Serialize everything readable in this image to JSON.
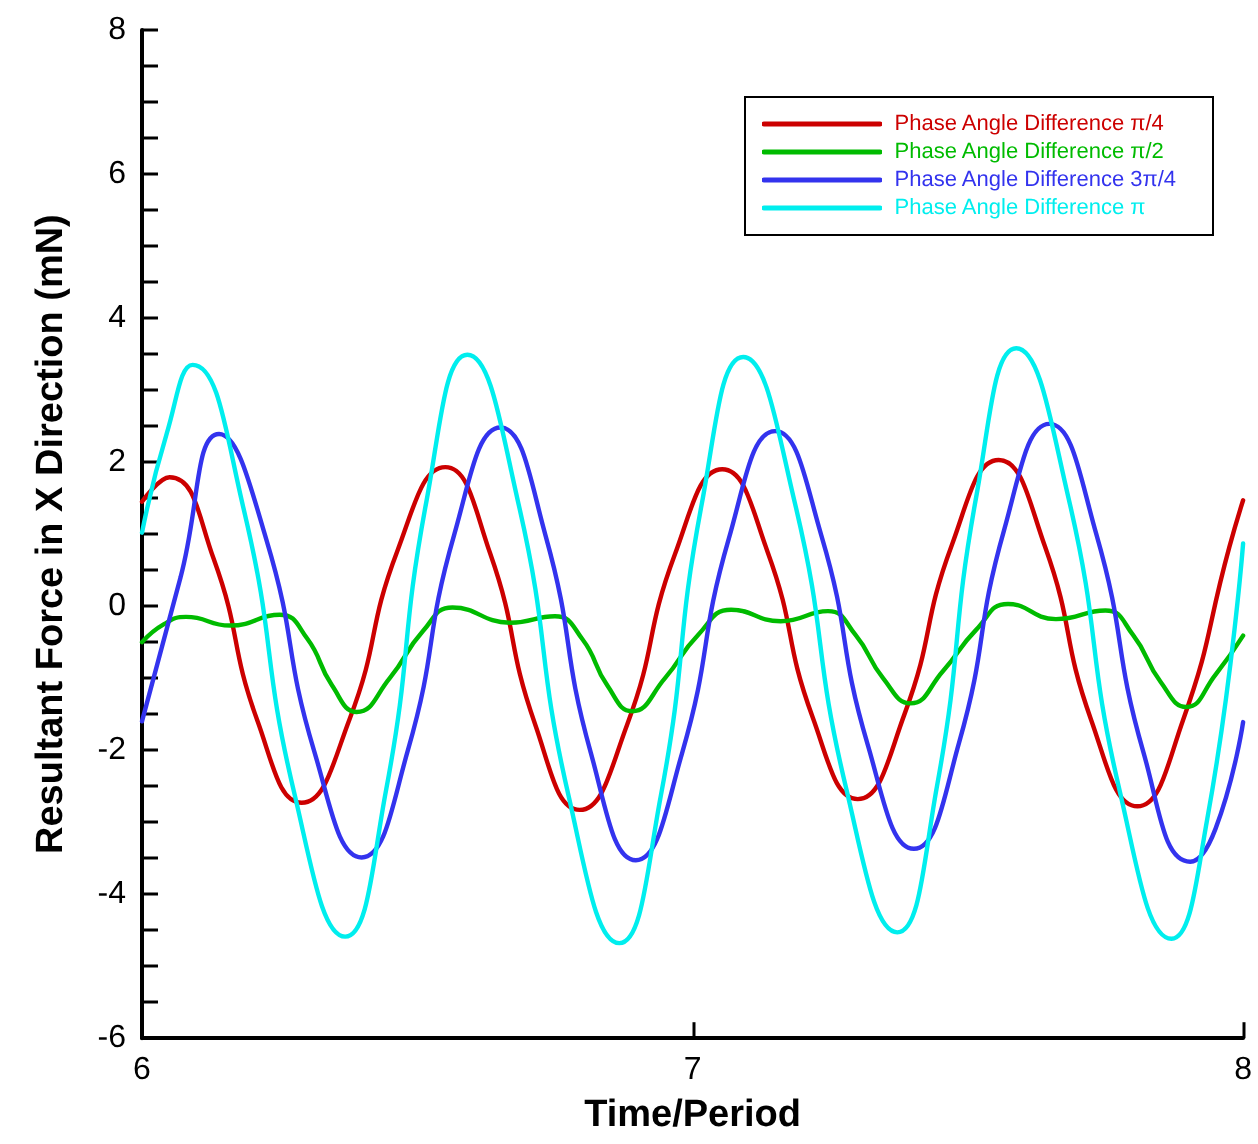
{
  "chart_data": {
    "type": "line",
    "xlabel": "Time/Period",
    "ylabel": "Resultant Force in X Direction (mN)",
    "xlim": [
      6,
      8
    ],
    "xticks": [
      6,
      7,
      8
    ],
    "ylim": [
      -6,
      8
    ],
    "yticks": [
      -6,
      {
        "value": -5.5,
        "label": null
      },
      {
        "value": -5,
        "label": null
      },
      {
        "value": -4.5,
        "label": null
      },
      -4,
      {
        "value": -3.5,
        "label": null
      },
      {
        "value": -3,
        "label": null
      },
      {
        "value": -2.5,
        "label": null
      },
      -2,
      {
        "value": -1.5,
        "label": null
      },
      {
        "value": -1,
        "label": null
      },
      {
        "value": -0.5,
        "label": null
      },
      0,
      {
        "value": 0.5,
        "label": null
      },
      {
        "value": 1,
        "label": null
      },
      {
        "value": 1.5,
        "label": null
      },
      2,
      {
        "value": 2.5,
        "label": null
      },
      {
        "value": 3,
        "label": null
      },
      {
        "value": 3.5,
        "label": null
      },
      4,
      {
        "value": 4.5,
        "label": null
      },
      {
        "value": 5,
        "label": null
      },
      {
        "value": 5.5,
        "label": null
      },
      6,
      {
        "value": 6.5,
        "label": null
      },
      {
        "value": 7,
        "label": null
      },
      {
        "value": 7.5,
        "label": null
      },
      8
    ],
    "grid": false,
    "legend": "top right",
    "marker": "none",
    "line_style": "solid",
    "series": [
      {
        "name": "Phase Angle Difference π/4",
        "color": "#cc0000",
        "x": [
          6.0,
          6.05,
          6.13,
          6.21,
          6.29,
          6.377,
          6.464,
          6.551,
          6.632,
          6.714,
          6.795,
          6.881,
          6.968,
          7.054,
          7.136,
          7.218,
          7.3,
          7.385,
          7.471,
          7.556,
          7.64,
          7.724,
          7.808,
          7.891,
          7.975,
          8.0
        ],
        "values": [
          1.45,
          1.79,
          0.66,
          -1.6,
          -2.73,
          -1.57,
          0.77,
          1.93,
          0.74,
          -1.64,
          -2.83,
          -1.65,
          0.72,
          1.9,
          0.76,
          -1.54,
          -2.68,
          -1.5,
          0.85,
          2.03,
          0.83,
          -1.58,
          -2.78,
          -1.58,
          0.82,
          1.47
        ]
      },
      {
        "name": "Phase Angle Difference π/2",
        "color": "#00bb00",
        "x": [
          6.0,
          6.04,
          6.08,
          6.16,
          6.25,
          6.3,
          6.345,
          6.39,
          6.45,
          6.51,
          6.564,
          6.669,
          6.75,
          6.8,
          6.845,
          6.89,
          6.95,
          7.01,
          7.07,
          7.16,
          7.246,
          7.296,
          7.346,
          7.396,
          7.455,
          7.515,
          7.573,
          7.66,
          7.75,
          7.8,
          7.85,
          7.897,
          7.95,
          8.0
        ],
        "values": [
          -0.5,
          -0.25,
          -0.15,
          -0.27,
          -0.12,
          -0.45,
          -1.1,
          -1.47,
          -1.0,
          -0.35,
          -0.02,
          -0.23,
          -0.14,
          -0.46,
          -1.1,
          -1.46,
          -1.0,
          -0.4,
          -0.05,
          -0.21,
          -0.07,
          -0.4,
          -1.0,
          -1.35,
          -0.9,
          -0.33,
          0.03,
          -0.18,
          -0.06,
          -0.4,
          -1.05,
          -1.4,
          -0.95,
          -0.41
        ]
      },
      {
        "name": "Phase Angle Difference 3π/4",
        "color": "#3333ee",
        "x": [
          6.0,
          6.07,
          6.14,
          6.226,
          6.313,
          6.399,
          6.483,
          6.567,
          6.651,
          6.733,
          6.815,
          6.897,
          6.981,
          7.066,
          7.15,
          7.234,
          7.318,
          7.402,
          7.484,
          7.566,
          7.648,
          7.733,
          7.819,
          7.904,
          7.95,
          8.0
        ],
        "values": [
          -1.6,
          0.4,
          2.39,
          0.92,
          -2.02,
          -3.49,
          -2.0,
          0.99,
          2.48,
          0.98,
          -2.03,
          -3.53,
          -2.04,
          0.94,
          2.43,
          0.98,
          -1.92,
          -3.37,
          -1.9,
          1.06,
          2.53,
          1.01,
          -2.03,
          -3.55,
          -3.09,
          -1.61
        ]
      },
      {
        "name": "Phase Angle Difference π",
        "color": "#00eeee",
        "x": [
          6.0,
          6.045,
          6.092,
          6.184,
          6.277,
          6.369,
          6.443,
          6.517,
          6.591,
          6.683,
          6.775,
          6.867,
          6.942,
          7.017,
          7.092,
          7.185,
          7.279,
          7.372,
          7.444,
          7.516,
          7.588,
          7.682,
          7.776,
          7.87,
          7.935,
          8.0
        ],
        "values": [
          1.02,
          2.4,
          3.35,
          1.37,
          -2.61,
          -4.59,
          -2.57,
          1.47,
          3.49,
          1.45,
          -2.64,
          -4.68,
          -2.65,
          1.43,
          3.46,
          1.46,
          -2.53,
          -4.53,
          -2.5,
          1.55,
          3.58,
          1.53,
          -2.57,
          -4.62,
          -2.95,
          0.87
        ]
      }
    ]
  }
}
